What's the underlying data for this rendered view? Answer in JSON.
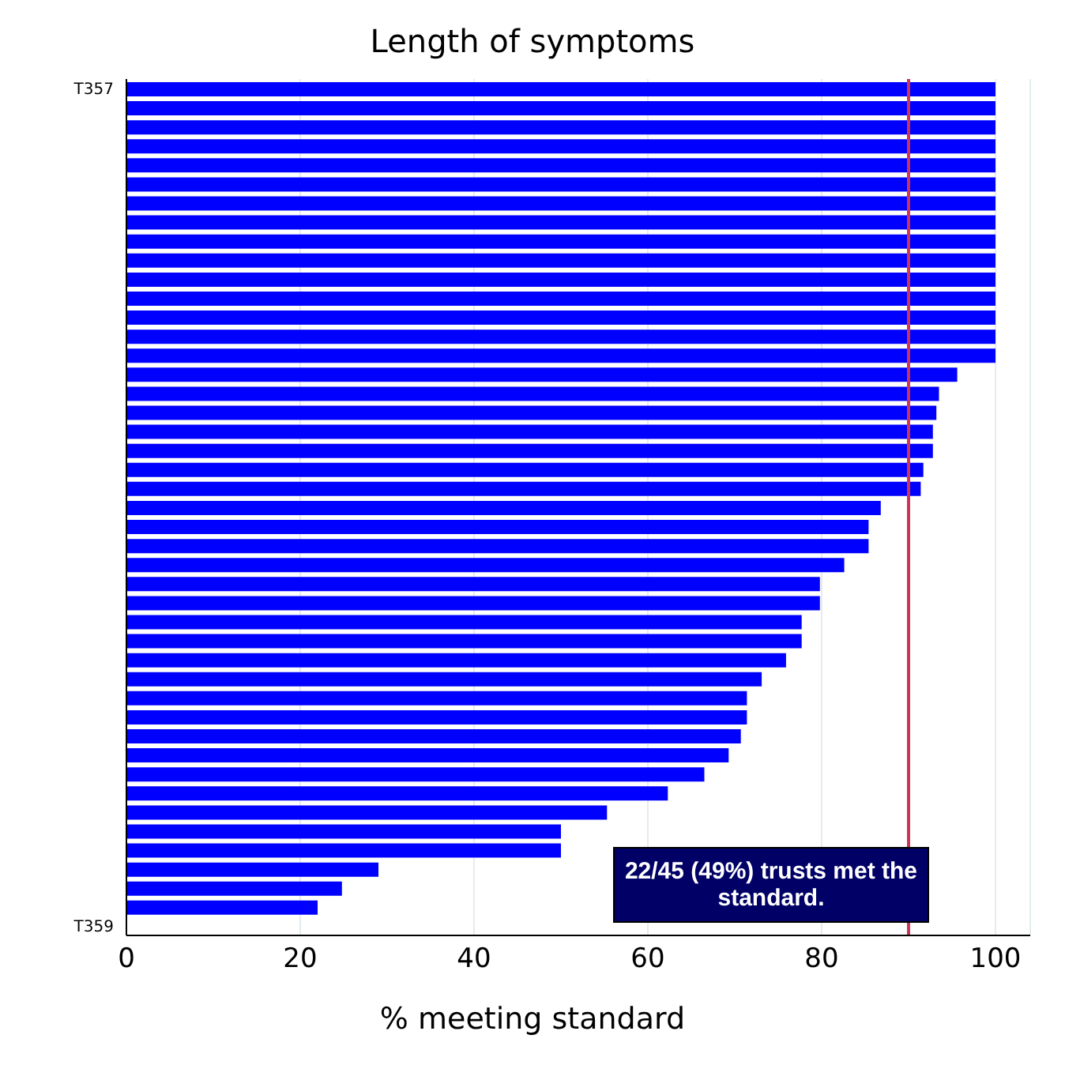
{
  "chart_data": {
    "type": "bar",
    "orientation": "horizontal",
    "title": "Length of symptoms",
    "xlabel": "% meeting standard",
    "categories": [
      "T357",
      null,
      null,
      null,
      null,
      null,
      null,
      null,
      null,
      null,
      null,
      null,
      null,
      null,
      null,
      null,
      null,
      null,
      null,
      null,
      null,
      null,
      null,
      null,
      null,
      null,
      null,
      null,
      null,
      null,
      null,
      null,
      null,
      null,
      null,
      null,
      null,
      null,
      null,
      null,
      null,
      null,
      null,
      null,
      "T359"
    ],
    "values": [
      100,
      100,
      100,
      100,
      100,
      100,
      100,
      100,
      100,
      100,
      100,
      100,
      100,
      100,
      100,
      95.6,
      93.5,
      93.2,
      92.8,
      92.8,
      91.7,
      91.4,
      86.8,
      85.4,
      85.4,
      82.6,
      79.8,
      79.8,
      77.7,
      77.7,
      75.9,
      73.1,
      71.4,
      71.4,
      70.7,
      69.3,
      66.5,
      62.3,
      55.3,
      50,
      50,
      29,
      24.8,
      22,
      0
    ],
    "color": "#0000ff",
    "xlim": [
      0,
      104
    ],
    "xticks": [
      0,
      20,
      40,
      60,
      80,
      100
    ],
    "grid": "x",
    "ref_lines": [
      {
        "axis": "x",
        "value": 90,
        "color": "#cc3355"
      }
    ],
    "annotations": [
      "22/45 (49%) trusts met the standard."
    ]
  }
}
